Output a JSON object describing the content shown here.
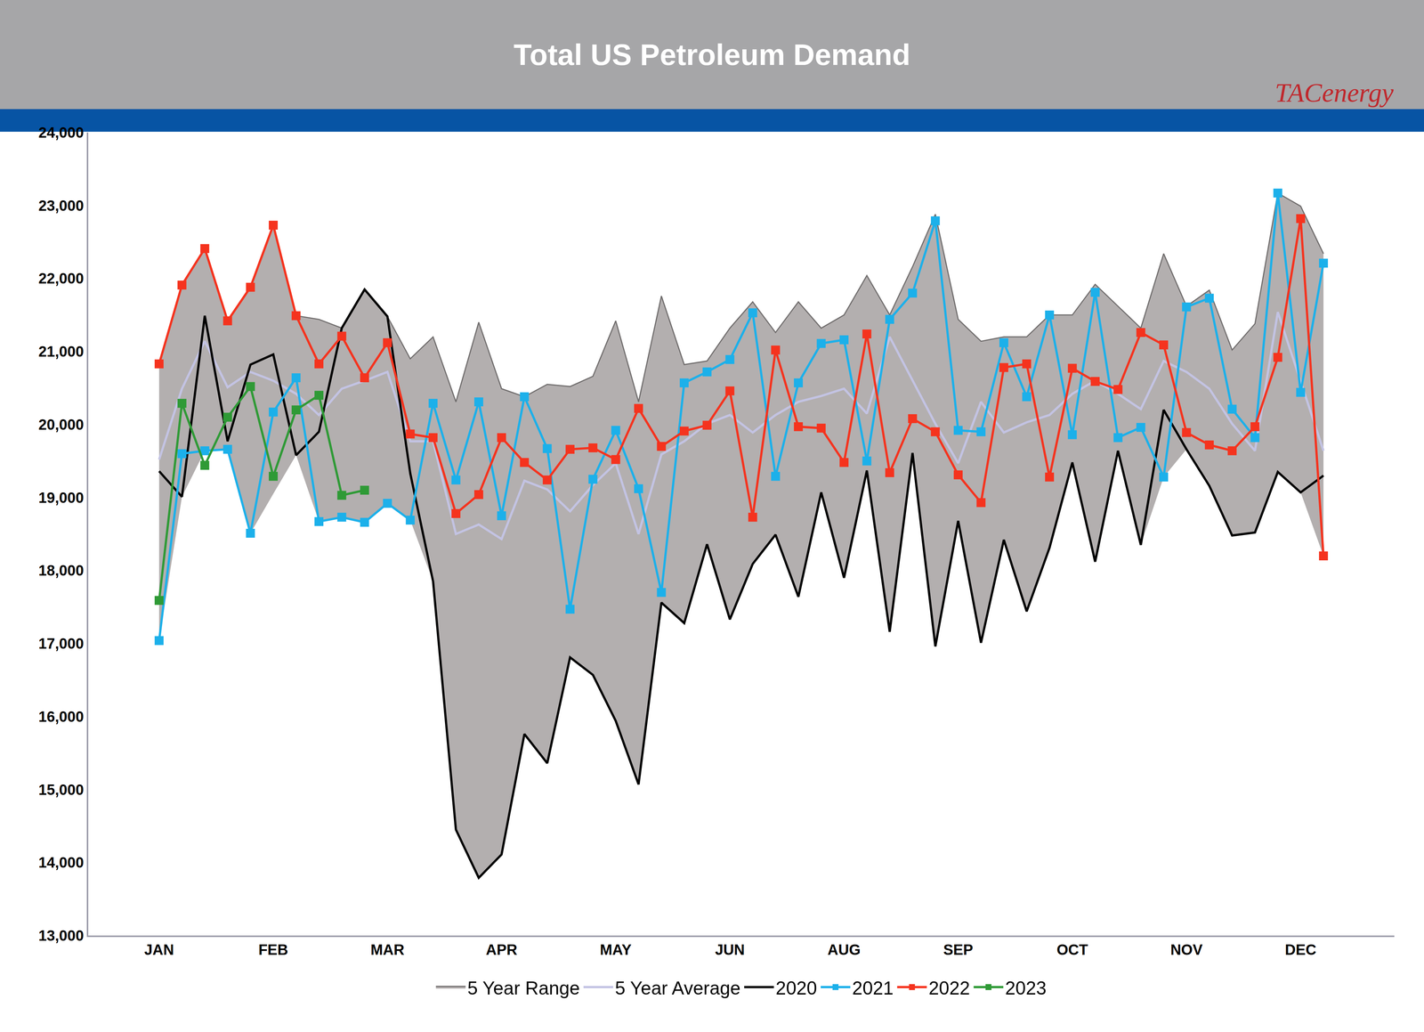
{
  "chart_data": {
    "type": "line",
    "title": "Total US Petroleum Demand",
    "logo": "TACenergy",
    "categories": [
      "JAN",
      null,
      null,
      null,
      null,
      "FEB",
      null,
      null,
      null,
      null,
      "MAR",
      null,
      null,
      null,
      null,
      "APR",
      null,
      null,
      null,
      null,
      "MAY",
      null,
      null,
      null,
      null,
      "JUN",
      null,
      null,
      null,
      null,
      "AUG",
      null,
      null,
      null,
      null,
      "SEP",
      null,
      null,
      null,
      null,
      "OCT",
      null,
      null,
      null,
      null,
      "NOV",
      null,
      null,
      null,
      null,
      "DEC",
      null
    ],
    "ylim": [
      13000,
      24000
    ],
    "yticks": [
      {
        "value": 13000,
        "label": "13,000"
      },
      {
        "value": 14000,
        "label": "14,000"
      },
      {
        "value": 15000,
        "label": "15,000"
      },
      {
        "value": 16000,
        "label": "16,000"
      },
      {
        "value": 17000,
        "label": "17,000"
      },
      {
        "value": 18000,
        "label": "18,000"
      },
      {
        "value": 19000,
        "label": "19,000"
      },
      {
        "value": 20000,
        "label": "20,000"
      },
      {
        "value": 21000,
        "label": "21,000"
      },
      {
        "value": 22000,
        "label": "22,000"
      },
      {
        "value": 23000,
        "label": "23,000"
      },
      {
        "value": 24000,
        "label": "24,000"
      }
    ],
    "grid": false,
    "legend": "bottom",
    "series": [
      {
        "name": "5 Year Range",
        "type": "area",
        "color": "#b3afaf",
        "marker": "none",
        "lower": [
          17040,
          19010,
          19640,
          19660,
          18510,
          19050,
          19580,
          18670,
          18730,
          18660,
          18920,
          18690,
          17850,
          14450,
          13790,
          14110,
          15760,
          15360,
          16810,
          16570,
          15940,
          15070,
          17560,
          17280,
          18360,
          17330,
          18090,
          18490,
          17640,
          19070,
          17900,
          19370,
          17160,
          19610,
          16960,
          18680,
          17010,
          18420,
          17440,
          18310,
          19480,
          18120,
          19640,
          18350,
          19280,
          19660,
          19160,
          18480,
          18520,
          19350,
          19070,
          18200
        ],
        "upper": [
          20830,
          21910,
          22410,
          21420,
          21880,
          22730,
          21490,
          21440,
          21320,
          21850,
          21480,
          20900,
          21200,
          20310,
          21400,
          20490,
          20380,
          20550,
          20520,
          20660,
          21420,
          20310,
          21760,
          20820,
          20870,
          21320,
          21680,
          21260,
          21680,
          21320,
          21500,
          22040,
          21500,
          22160,
          22880,
          21440,
          21140,
          21200,
          21200,
          21500,
          21500,
          21920,
          21620,
          21320,
          22340,
          21620,
          21840,
          21020,
          21380,
          23170,
          22990,
          22340
        ]
      },
      {
        "name": "5 Year Average",
        "type": "line",
        "color": "#c3c3e3",
        "marker": "none",
        "values": [
          19520,
          20490,
          21140,
          20510,
          20720,
          20600,
          20420,
          20130,
          20490,
          20600,
          20720,
          19770,
          19770,
          18500,
          18630,
          18430,
          19230,
          19110,
          18810,
          19170,
          19470,
          18500,
          19590,
          19770,
          20010,
          20130,
          19890,
          20130,
          20310,
          20390,
          20490,
          20150,
          21200,
          20600,
          20010,
          19470,
          20310,
          19890,
          20030,
          20130,
          20420,
          20600,
          20420,
          20210,
          20870,
          20720,
          20490,
          20010,
          19640,
          21540,
          20600,
          19640
        ]
      },
      {
        "name": "2020",
        "type": "line",
        "color": "#000000",
        "marker": "none",
        "values": [
          19360,
          19010,
          21490,
          19770,
          20820,
          20960,
          19580,
          19900,
          21320,
          21850,
          21480,
          19330,
          17850,
          14450,
          13790,
          14110,
          15760,
          15360,
          16810,
          16570,
          15940,
          15070,
          17560,
          17280,
          18360,
          17330,
          18090,
          18490,
          17640,
          19070,
          17900,
          19370,
          17160,
          19610,
          16960,
          18680,
          17010,
          18420,
          17440,
          18310,
          19480,
          18120,
          19640,
          18350,
          20200,
          19660,
          19160,
          18480,
          18520,
          19350,
          19070,
          19300
        ]
      },
      {
        "name": "2021",
        "type": "line",
        "color": "#1cb0ea",
        "marker": "square",
        "values": [
          17040,
          19600,
          19640,
          19660,
          18510,
          20170,
          20640,
          18670,
          18730,
          18660,
          18920,
          18690,
          20290,
          19240,
          20310,
          18750,
          20380,
          19670,
          17470,
          19250,
          19920,
          19120,
          17700,
          20570,
          20720,
          20890,
          21530,
          19290,
          20570,
          21110,
          21160,
          19500,
          21440,
          21800,
          22790,
          19920,
          19900,
          21120,
          20380,
          21500,
          19860,
          21810,
          19820,
          19960,
          19280,
          21610,
          21730,
          20210,
          19820,
          23170,
          20440,
          22210
        ]
      },
      {
        "name": "2022",
        "type": "line",
        "color": "#f5331e",
        "marker": "square",
        "values": [
          20830,
          21910,
          22410,
          21420,
          21880,
          22730,
          21490,
          20830,
          21210,
          20640,
          21120,
          19870,
          19820,
          18780,
          19040,
          19820,
          19480,
          19240,
          19660,
          19680,
          19520,
          20220,
          19700,
          19910,
          19990,
          20460,
          18730,
          21020,
          19970,
          19950,
          19480,
          21240,
          19340,
          20080,
          19900,
          19310,
          18930,
          20780,
          20830,
          19280,
          20770,
          20590,
          20480,
          21260,
          21090,
          19890,
          19720,
          19640,
          19970,
          20920,
          22820,
          18200
        ]
      },
      {
        "name": "2023",
        "type": "line",
        "color": "#2f9a36",
        "marker": "square",
        "values": [
          17590,
          20290,
          19440,
          20100,
          20520,
          19290,
          20200,
          20400,
          19030,
          19100,
          null,
          null,
          null,
          null,
          null,
          null,
          null,
          null,
          null,
          null,
          null,
          null,
          null,
          null,
          null,
          null,
          null,
          null,
          null,
          null,
          null,
          null,
          null,
          null,
          null,
          null,
          null,
          null,
          null,
          null,
          null,
          null,
          null,
          null,
          null,
          null,
          null,
          null,
          null,
          null,
          null,
          null
        ]
      }
    ]
  }
}
